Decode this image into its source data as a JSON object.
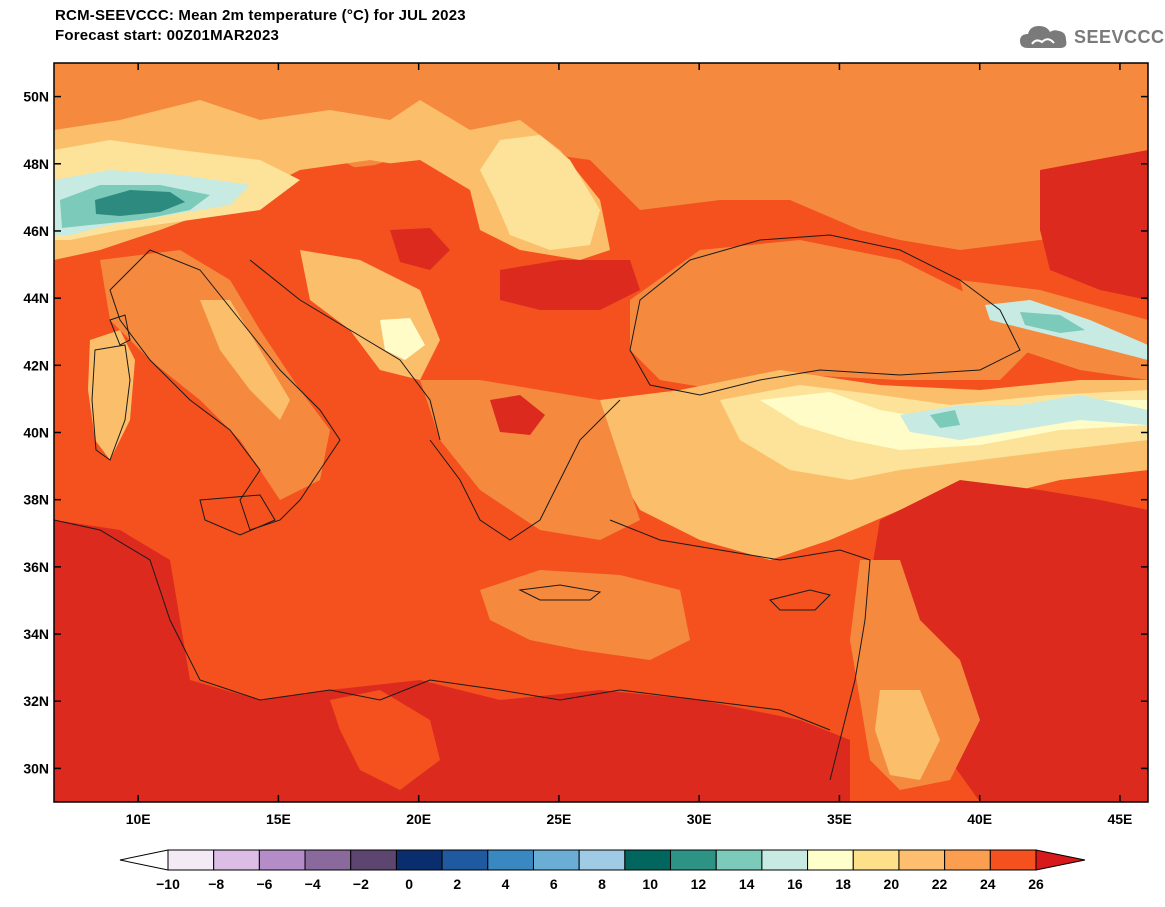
{
  "header": {
    "title_line1": "RCM-SEEVCCC: Mean 2m temperature (°C) for JUL 2023",
    "title_line2": "Forecast start: 00Z01MAR2023"
  },
  "logo": {
    "text": "SEEVCCC",
    "icon": "cloud-logo-icon"
  },
  "map": {
    "lon_range": [
      7,
      46
    ],
    "lat_range": [
      29,
      51
    ],
    "lat_ticks": [
      {
        "value": 50,
        "label": "50N"
      },
      {
        "value": 48,
        "label": "48N"
      },
      {
        "value": 46,
        "label": "46N"
      },
      {
        "value": 44,
        "label": "44N"
      },
      {
        "value": 42,
        "label": "42N"
      },
      {
        "value": 40,
        "label": "40N"
      },
      {
        "value": 38,
        "label": "38N"
      },
      {
        "value": 36,
        "label": "36N"
      },
      {
        "value": 34,
        "label": "34N"
      },
      {
        "value": 32,
        "label": "32N"
      },
      {
        "value": 30,
        "label": "30N"
      }
    ],
    "lon_ticks": [
      {
        "value": 10,
        "label": "10E"
      },
      {
        "value": 15,
        "label": "15E"
      },
      {
        "value": 20,
        "label": "20E"
      },
      {
        "value": 25,
        "label": "25E"
      },
      {
        "value": 30,
        "label": "30E"
      },
      {
        "value": 35,
        "label": "35E"
      },
      {
        "value": 40,
        "label": "40E"
      },
      {
        "value": 45,
        "label": "45E"
      }
    ]
  },
  "colorbar": {
    "labels": [
      "−10",
      "−8",
      "−6",
      "−4",
      "−2",
      "0",
      "2",
      "4",
      "6",
      "8",
      "10",
      "12",
      "14",
      "16",
      "18",
      "20",
      "22",
      "24",
      "26"
    ],
    "under_color": "#ffffff",
    "over_color": "#d7191c",
    "colors": [
      "#f3eaf6",
      "#dcbde6",
      "#b48cc7",
      "#8a6a9c",
      "#5c4670",
      "#0a2d6e",
      "#1f5aa0",
      "#3a88c2",
      "#6aaed6",
      "#9fcbe4",
      "#00665e",
      "#2d9485",
      "#7ccab9",
      "#c7eae3",
      "#ffffcc",
      "#fee08b",
      "#fdbf6f",
      "#fc9e4f",
      "#f4511e"
    ]
  },
  "field_colors": {
    "hot": "#dc2a1f",
    "warm": "#f4511e",
    "mild": "#f58a3f",
    "moderate": "#fbbf6b",
    "cool": "#fde39a",
    "fresh": "#fffcc8",
    "cold": "#c7eae3",
    "colder": "#7ccab9",
    "coldest": "#2d8a7e",
    "border": "#1a1a1a"
  }
}
